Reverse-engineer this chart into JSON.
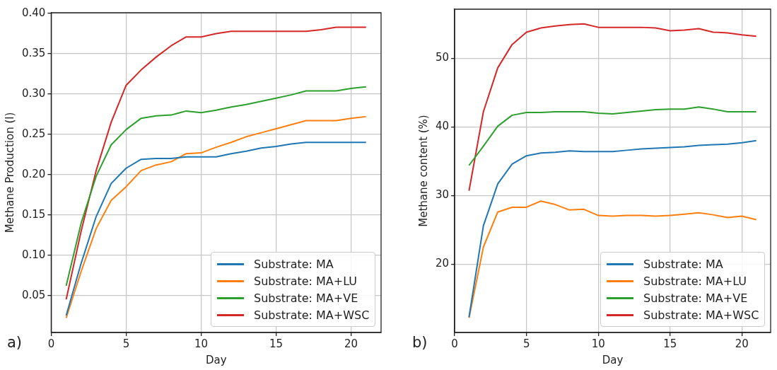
{
  "chart_data": [
    {
      "type": "line",
      "xlabel": "Day",
      "ylabel": "Methane Production (l)",
      "annotations": [
        "a)"
      ],
      "grid": true,
      "legend": "bottom right",
      "marker": "none",
      "x": [
        1,
        2,
        3,
        4,
        5,
        6,
        7,
        8,
        9,
        10,
        11,
        12,
        13,
        14,
        15,
        16,
        17,
        18,
        19,
        20,
        21
      ],
      "series": [
        {
          "name": "Substrate: MA",
          "color": "#1f77b4",
          "values": [
            0.025,
            0.09,
            0.148,
            0.189,
            0.208,
            0.219,
            0.22,
            0.22,
            0.222,
            0.222,
            0.222,
            0.226,
            0.229,
            0.233,
            0.235,
            0.238,
            0.24,
            0.24,
            0.24,
            0.24,
            0.24
          ]
        },
        {
          "name": "Substrate: MA+LU",
          "color": "#ff7f0e",
          "values": [
            0.022,
            0.08,
            0.133,
            0.168,
            0.185,
            0.205,
            0.212,
            0.216,
            0.226,
            0.227,
            0.234,
            0.24,
            0.247,
            0.252,
            0.257,
            0.262,
            0.267,
            0.267,
            0.267,
            0.27,
            0.272
          ]
        },
        {
          "name": "Substrate: MA+VE",
          "color": "#2ca02c",
          "values": [
            0.062,
            0.14,
            0.198,
            0.237,
            0.256,
            0.27,
            0.273,
            0.274,
            0.279,
            0.277,
            0.28,
            0.284,
            0.287,
            0.291,
            0.295,
            0.299,
            0.304,
            0.304,
            0.304,
            0.307,
            0.309
          ]
        },
        {
          "name": "Substrate: MA+WSC",
          "color": "#d62728",
          "values": [
            0.045,
            0.13,
            0.205,
            0.265,
            0.311,
            0.33,
            0.346,
            0.36,
            0.371,
            0.371,
            0.375,
            0.378,
            0.378,
            0.378,
            0.378,
            0.378,
            0.378,
            0.38,
            0.383,
            0.383,
            0.383
          ]
        }
      ],
      "xlim": [
        0,
        22
      ],
      "xticks": [
        0,
        5,
        10,
        15,
        20
      ],
      "ylim": [
        0.004,
        0.401
      ],
      "yticks": [
        {
          "value": 0.05,
          "label": "0.05"
        },
        {
          "value": 0.1,
          "label": "0.10"
        },
        {
          "value": 0.15,
          "label": "0.15"
        },
        {
          "value": 0.2,
          "label": "0.20"
        },
        {
          "value": 0.25,
          "label": "0.25"
        },
        {
          "value": 0.3,
          "label": "0.30"
        },
        {
          "value": 0.35,
          "label": "0.35"
        },
        {
          "value": 0.4,
          "label": "0.40"
        }
      ]
    },
    {
      "type": "line",
      "xlabel": "Day",
      "ylabel": "Methane content (%)",
      "annotations": [
        "b)"
      ],
      "grid": true,
      "legend": "bottom right",
      "marker": "none",
      "x": [
        1,
        2,
        3,
        4,
        5,
        6,
        7,
        8,
        9,
        10,
        11,
        12,
        13,
        14,
        15,
        16,
        17,
        18,
        19,
        20,
        21
      ],
      "series": [
        {
          "name": "Substrate: MA",
          "color": "#1f77b4",
          "values": [
            12.3,
            25.6,
            31.7,
            34.6,
            35.8,
            36.2,
            36.3,
            36.5,
            36.4,
            36.4,
            36.4,
            36.6,
            36.8,
            36.9,
            37.0,
            37.1,
            37.3,
            37.4,
            37.5,
            37.7,
            38.0
          ]
        },
        {
          "name": "Substrate: MA+LU",
          "color": "#ff7f0e",
          "values": [
            12.2,
            22.5,
            27.6,
            28.3,
            28.3,
            29.2,
            28.7,
            27.9,
            28.0,
            27.1,
            27.0,
            27.1,
            27.1,
            27.0,
            27.1,
            27.3,
            27.5,
            27.2,
            26.8,
            27.0,
            26.5
          ]
        },
        {
          "name": "Substrate: MA+VE",
          "color": "#2ca02c",
          "values": [
            34.4,
            37.2,
            40.1,
            41.7,
            42.1,
            42.1,
            42.2,
            42.2,
            42.2,
            42.0,
            41.9,
            42.1,
            42.3,
            42.5,
            42.6,
            42.6,
            42.9,
            42.6,
            42.2,
            42.2,
            42.2
          ]
        },
        {
          "name": "Substrate: MA+WSC",
          "color": "#d62728",
          "values": [
            30.7,
            42.2,
            48.6,
            52.0,
            53.8,
            54.4,
            54.7,
            54.9,
            55.0,
            54.5,
            54.5,
            54.5,
            54.5,
            54.4,
            54.0,
            54.1,
            54.3,
            53.8,
            53.7,
            53.4,
            53.2
          ]
        }
      ],
      "xlim": [
        0,
        22
      ],
      "xticks": [
        0,
        5,
        10,
        15,
        20
      ],
      "ylim": [
        10.06,
        57.14
      ],
      "yticks": [
        20,
        30,
        40,
        50
      ]
    }
  ]
}
